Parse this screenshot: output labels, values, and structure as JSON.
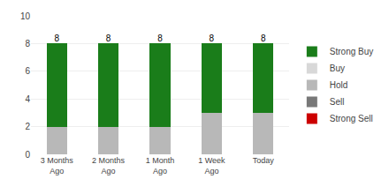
{
  "chart_data": {
    "type": "bar",
    "stacked": true,
    "categories": [
      "3 Months\nAgo",
      "2 Months\nAgo",
      "1 Month\nAgo",
      "1 Week\nAgo",
      "Today"
    ],
    "series": [
      {
        "name": "Strong Sell",
        "color": "#cc0000",
        "values": [
          0,
          0,
          0,
          0,
          0
        ]
      },
      {
        "name": "Sell",
        "color": "#787878",
        "values": [
          0,
          0,
          0,
          0,
          0
        ]
      },
      {
        "name": "Hold",
        "color": "#b8b8b8",
        "values": [
          2,
          2,
          2,
          3,
          3
        ]
      },
      {
        "name": "Buy",
        "color": "#d8d8d8",
        "values": [
          0,
          0,
          0,
          0,
          0
        ]
      },
      {
        "name": "Strong Buy",
        "color": "#1a7d1a",
        "values": [
          6,
          6,
          6,
          5,
          5
        ]
      }
    ],
    "totals": [
      8,
      8,
      8,
      8,
      8
    ],
    "ylim": [
      0,
      10
    ],
    "yticks": [
      0,
      2,
      4,
      6,
      8,
      10
    ],
    "grid": true,
    "legend": "right"
  }
}
